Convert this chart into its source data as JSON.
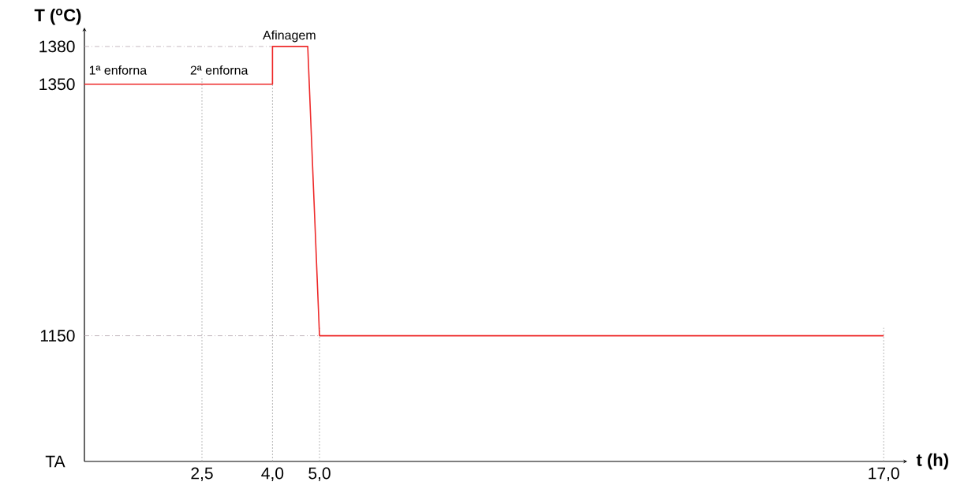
{
  "chart_data": {
    "type": "line",
    "xlabel": "t (h)",
    "ylabel": "T ($^{o}$C)",
    "x": [
      0,
      4,
      4,
      4.75,
      5,
      17
    ],
    "series": [
      {
        "color": "#ee2a2a",
        "values": [
          1350,
          1350,
          1380,
          1380,
          1150,
          1150
        ]
      }
    ],
    "xlim": [
      0,
      17.5
    ],
    "ylim": [
      1050,
      1395
    ],
    "xticks": [
      {
        "value": 2.5,
        "label": "2,5"
      },
      {
        "value": 4,
        "label": "4,0"
      },
      {
        "value": 5,
        "label": "5,0"
      },
      {
        "value": 17,
        "label": "17,0"
      }
    ],
    "yticks": [
      1150,
      1350,
      1380
    ],
    "ref_lines": [
      {
        "axis": "y",
        "value": 1380,
        "color": "#b8a8b0",
        "line_style": "dashed"
      },
      {
        "axis": "y",
        "value": 1150,
        "color": "#b8a8b0",
        "line_style": "dashed"
      },
      {
        "axis": "x",
        "value": 2.5,
        "color": "#a8a8a8",
        "line_style": "dotted"
      },
      {
        "axis": "x",
        "value": 4,
        "color": "#a8a8a8",
        "line_style": "dotted"
      },
      {
        "axis": "x",
        "value": 5,
        "color": "#a8a8a8",
        "line_style": "dotted"
      },
      {
        "axis": "x",
        "value": 17,
        "color": "#a8a8a8",
        "line_style": "dotted"
      }
    ],
    "annotations": [
      "1ª enforna",
      "2ª enforna",
      "TA",
      {
        "text": "Afinagem",
        "x": 4.36,
        "y": 1380
      }
    ],
    "grid": false,
    "marker": "none",
    "line_style": "solid"
  }
}
